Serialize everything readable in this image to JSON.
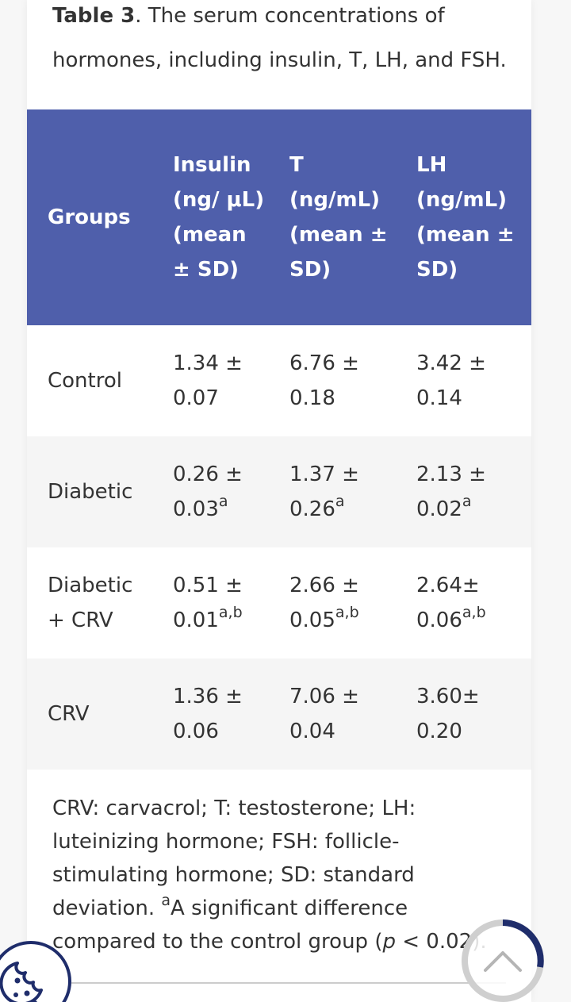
{
  "caption": {
    "lead": "Table 3",
    "text": ". The serum concentrations of hormones, including insulin, T, LH, and FSH."
  },
  "table": {
    "headers": {
      "groups": "Groups",
      "insulin": "Insulin (ng/ μL) (mean ± SD)",
      "t": "T (ng/mL) (mean ± SD)",
      "lh": "LH (ng/mL) (mean ± SD)"
    },
    "rows": [
      {
        "group": "Control",
        "insulin": "1.34 ± 0.07",
        "insulin_sup": "",
        "t": "6.76 ± 0.18",
        "t_sup": "",
        "lh": "3.42 ± 0.14",
        "lh_sup": ""
      },
      {
        "group": "Diabetic",
        "insulin": "0.26 ± 0.03",
        "insulin_sup": "a",
        "t": "1.37 ± 0.26",
        "t_sup": "a",
        "lh": "2.13 ± 0.02",
        "lh_sup": "a"
      },
      {
        "group": "Diabetic + CRV",
        "insulin": "0.51 ± 0.01",
        "insulin_sup": "a,b",
        "t": "2.66 ± 0.05",
        "t_sup": "a,b",
        "lh": "2.64± 0.06",
        "lh_sup": "a,b"
      },
      {
        "group": "CRV",
        "insulin": "1.36 ± 0.06",
        "insulin_sup": "",
        "t": "7.06 ± 0.04",
        "t_sup": "",
        "lh": "3.60± 0.20",
        "lh_sup": ""
      }
    ]
  },
  "footnote": {
    "text1": "CRV: carvacrol; T: testosterone; LH: luteinizing hormone; FSH: follicle-stimulating hormone; SD: standard deviation. ",
    "sup": "a",
    "text2": "A significant difference compared to the control group (",
    "p": "p",
    "text3": " < 0.02)."
  },
  "icons": {
    "cookie": "cookie-icon",
    "scroll_top": "chevron-up-icon"
  },
  "colors": {
    "header_bg": "#4f5fab",
    "accent": "#1f2d6b"
  }
}
